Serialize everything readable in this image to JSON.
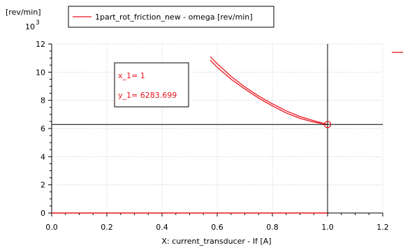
{
  "chart_data": {
    "type": "line",
    "ylabel": "[rev/min]",
    "xlabel": "X: current_transducer - If [A]",
    "y_multiplier": {
      "base": "10",
      "exponent": "3"
    },
    "xlim": [
      0,
      1.2
    ],
    "ylim": [
      0,
      12
    ],
    "x_ticks": [
      0.0,
      0.2,
      0.4,
      0.6,
      0.8,
      1.0,
      1.2
    ],
    "x_tick_labels": [
      "0.0",
      "0.2",
      "0.4",
      "0.6",
      "0.8",
      "1.0",
      "1.2"
    ],
    "y_ticks": [
      0,
      2,
      4,
      6,
      8,
      10,
      12
    ],
    "y_tick_labels": [
      "0",
      "2",
      "4",
      "6",
      "8",
      "10",
      "12"
    ],
    "grid": true,
    "legend_position": "top",
    "series": [
      {
        "name": "1part_rot_friction_new - omega [rev/min]",
        "color": "#e8141c",
        "branches": [
          {
            "x": [
              0.575,
              0.6,
              0.65,
              0.7,
              0.75,
              0.8,
              0.85,
              0.9,
              0.95,
              1.0
            ],
            "y": [
              11.1,
              10.6,
              9.7,
              8.95,
              8.3,
              7.75,
              7.25,
              6.85,
              6.55,
              6.28
            ]
          },
          {
            "x": [
              0.575,
              0.6,
              0.65,
              0.7,
              0.75,
              0.8,
              0.85,
              0.9,
              0.95,
              1.0
            ],
            "y": [
              10.85,
              10.35,
              9.5,
              8.8,
              8.15,
              7.6,
              7.1,
              6.72,
              6.45,
              6.28
            ]
          }
        ]
      },
      {
        "name": "",
        "color": "#e8141c",
        "baseline": {
          "x": [
            0,
            1.0
          ],
          "y": [
            0,
            0
          ]
        }
      }
    ],
    "cursor": {
      "x": 1.0,
      "y": 6.283699,
      "x_label": "x_1= 1",
      "y_label": "y_1= 6283.699",
      "line_color": "#000000",
      "marker_color": "#e8141c"
    }
  }
}
